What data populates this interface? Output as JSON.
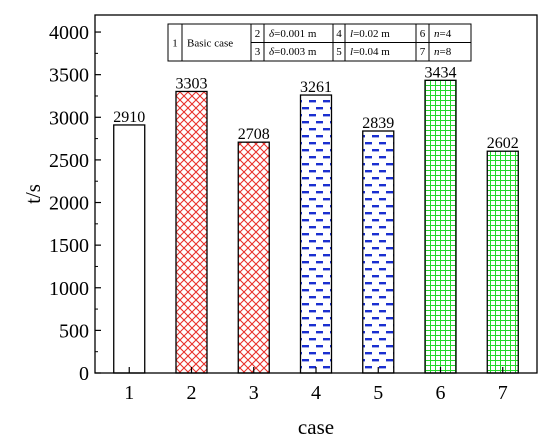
{
  "chart_data": {
    "type": "bar",
    "xlabel": "case",
    "ylabel": "t/s",
    "ylim": [
      0,
      4200
    ],
    "yticks": [
      0,
      500,
      1000,
      1500,
      2000,
      2500,
      3000,
      3500,
      4000
    ],
    "categories": [
      "1",
      "2",
      "3",
      "4",
      "5",
      "6",
      "7"
    ],
    "values": [
      2910,
      3303,
      2708,
      3261,
      2839,
      3434,
      2602
    ],
    "data_labels": [
      "2910",
      "3303",
      "2708",
      "3261",
      "2839",
      "3434",
      "2602"
    ],
    "bar_styles": [
      {
        "pattern": "none",
        "color": "#000000"
      },
      {
        "pattern": "crosshatch",
        "color": "#e8302a"
      },
      {
        "pattern": "crosshatch",
        "color": "#e8302a"
      },
      {
        "pattern": "dashes",
        "color": "#1a2fd0"
      },
      {
        "pattern": "dashes",
        "color": "#1a2fd0"
      },
      {
        "pattern": "grid",
        "color": "#22d82a"
      },
      {
        "pattern": "grid",
        "color": "#22d82a"
      }
    ],
    "legend_table": {
      "position": "top-center",
      "rows": [
        [
          {
            "num": "1",
            "text": "Basic case"
          },
          {
            "num": "2",
            "sym": "δ",
            "text": "=0.001 m"
          },
          {
            "num": "4",
            "sym": "l",
            "text": "=0.02 m"
          },
          {
            "num": "6",
            "sym": "n",
            "text": "=4"
          }
        ],
        [
          {
            "num": "3",
            "sym": "δ",
            "text": "=0.003 m"
          },
          {
            "num": "5",
            "sym": "l",
            "text": "=0.04 m"
          },
          {
            "num": "7",
            "sym": "n",
            "text": "=8"
          }
        ]
      ]
    }
  }
}
